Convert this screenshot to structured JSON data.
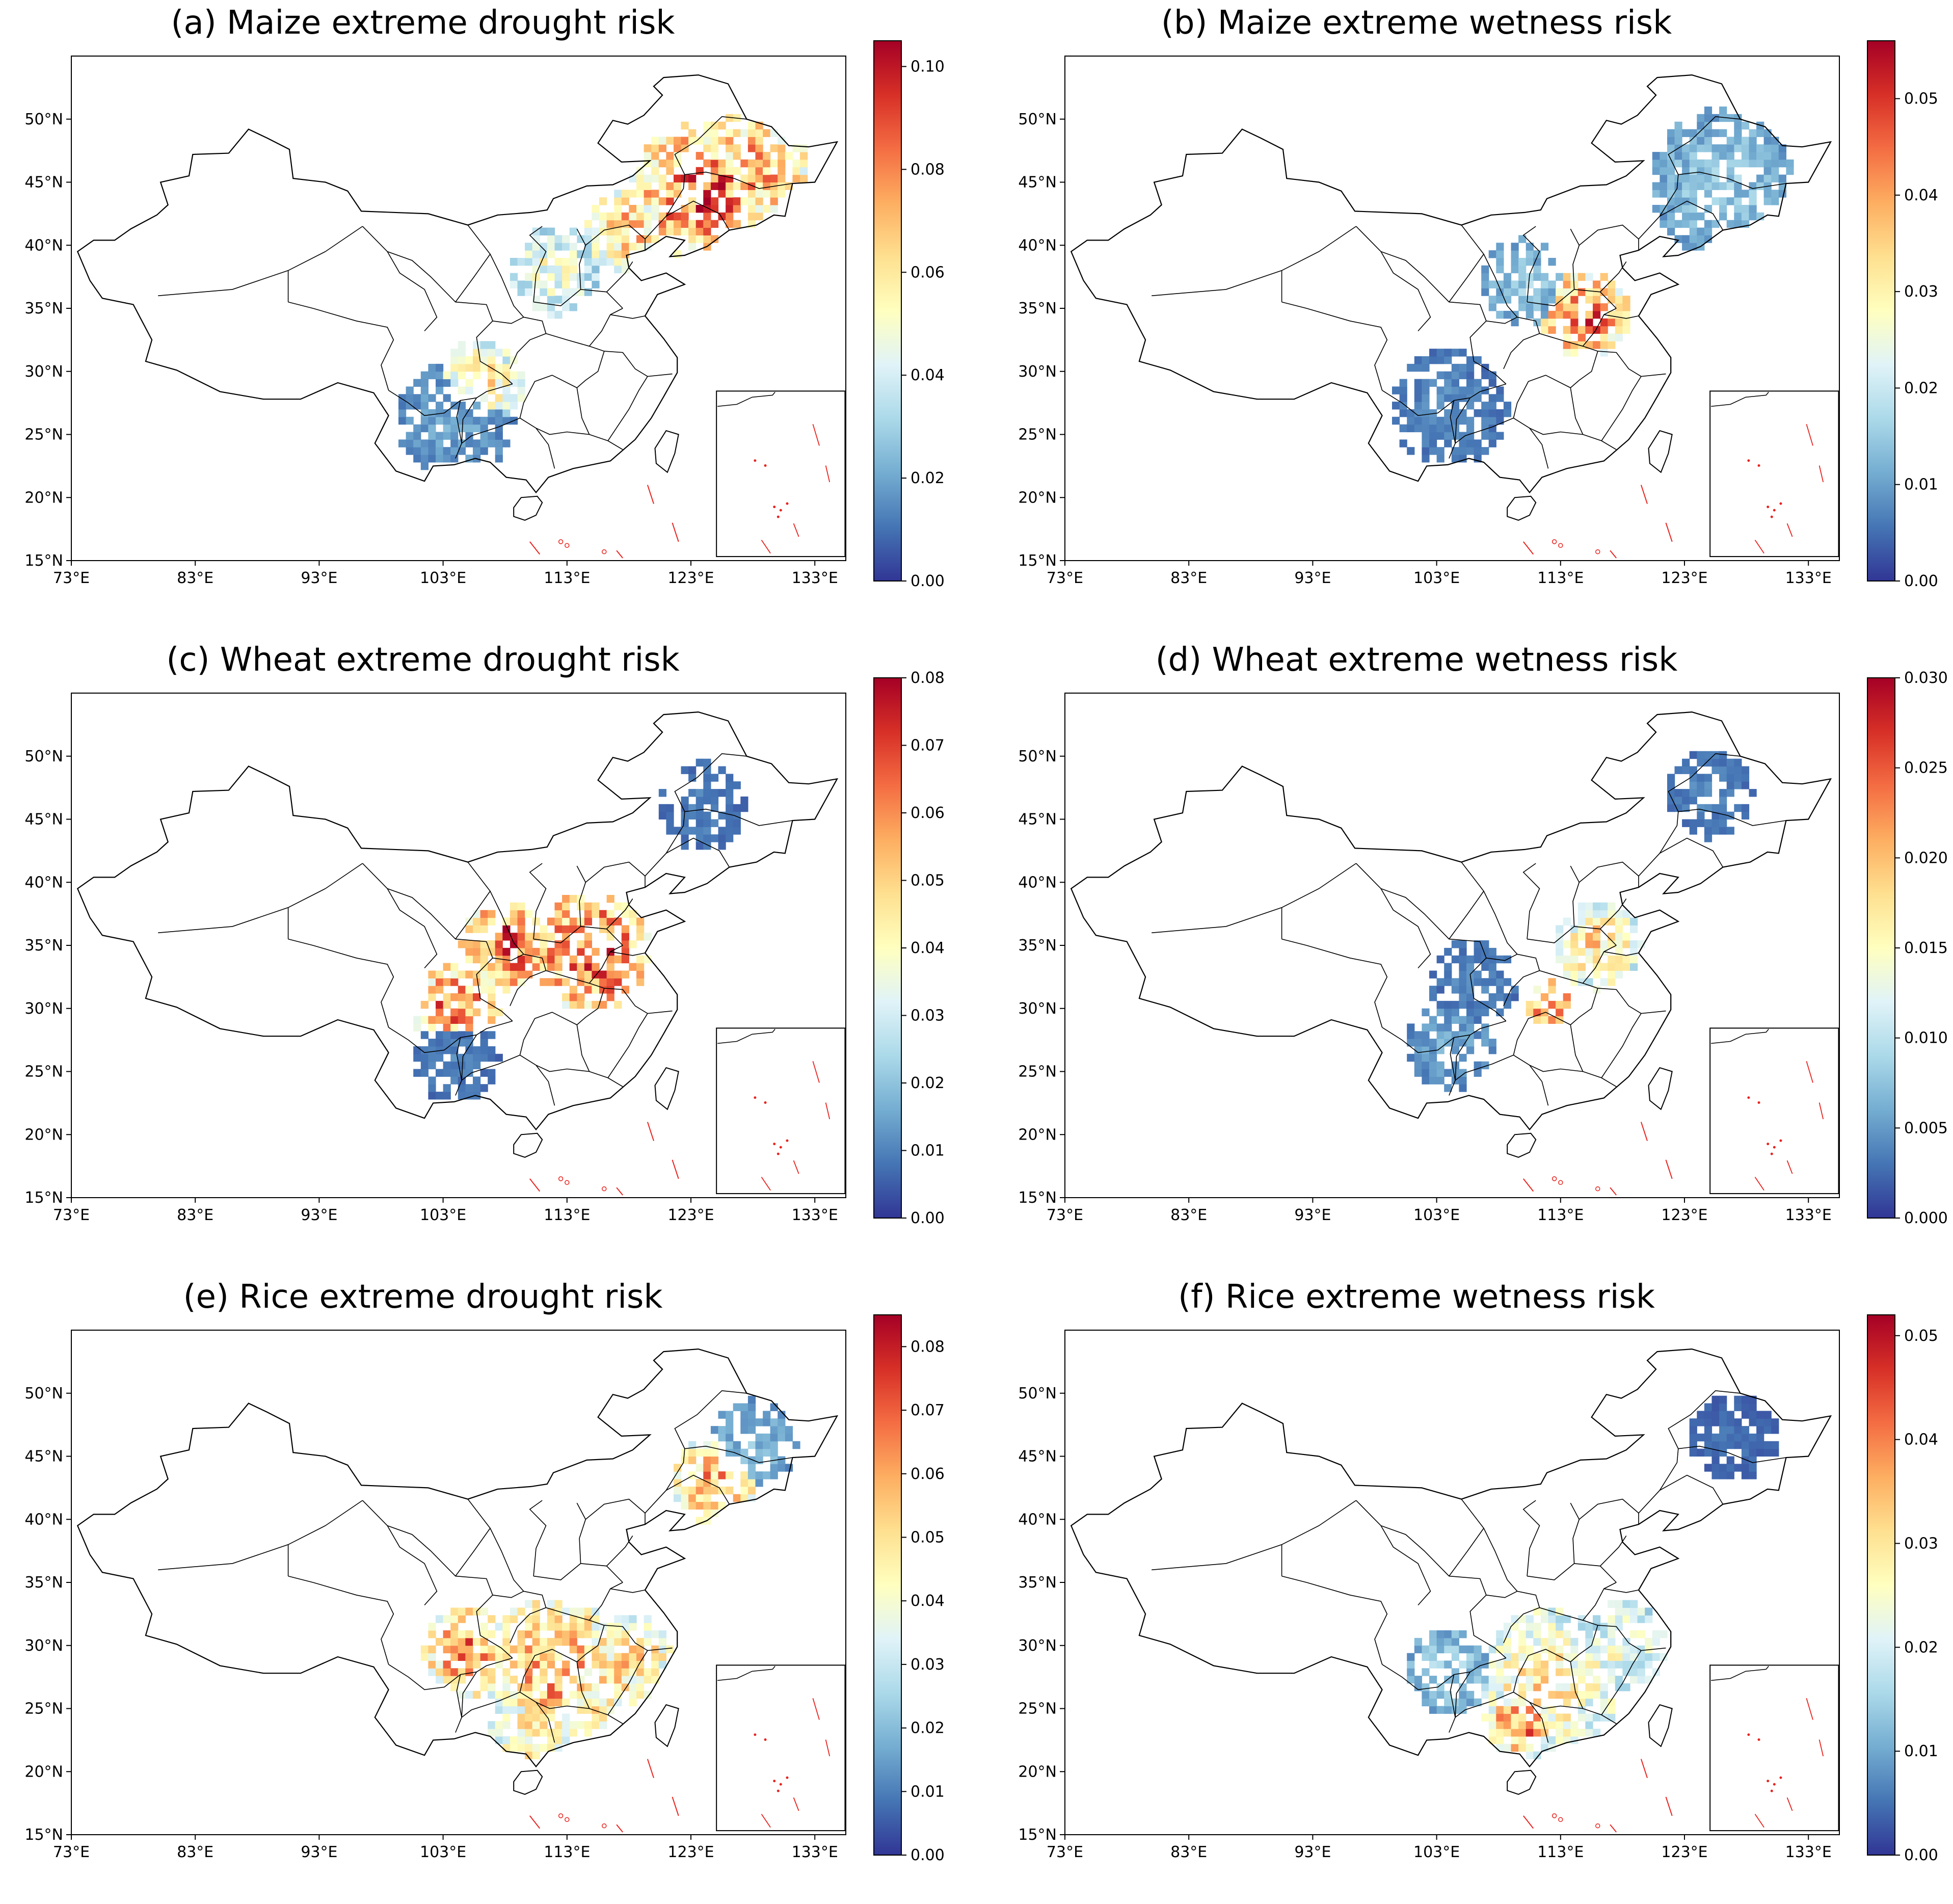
{
  "chart_data": [
    {
      "type": "heatmap",
      "panel": "a",
      "title": "(a) Maize extreme drought risk",
      "xlabel": "",
      "ylabel": "",
      "x_ticks": [
        "73°E",
        "83°E",
        "93°E",
        "103°E",
        "113°E",
        "123°E",
        "133°E"
      ],
      "y_ticks": [
        "15°N",
        "20°N",
        "25°N",
        "30°N",
        "35°N",
        "40°N",
        "45°N",
        "50°N"
      ],
      "xlim": [
        73,
        135.5
      ],
      "ylim": [
        15,
        55
      ],
      "colorbar": {
        "min": 0.0,
        "max": 0.105,
        "cmap": "RdYlBu_r",
        "ticks": [
          "0.00",
          "0.02",
          "0.04",
          "0.06",
          "0.08",
          "0.10"
        ]
      },
      "hotspots": [
        {
          "lon": 124,
          "lat": 44,
          "value": 0.085,
          "r": 5
        },
        {
          "lon": 128,
          "lat": 46,
          "value": 0.075,
          "r": 4
        },
        {
          "lon": 118,
          "lat": 41,
          "value": 0.07,
          "r": 3
        },
        {
          "lon": 112,
          "lat": 38,
          "value": 0.05,
          "r": 3
        },
        {
          "lon": 106,
          "lat": 29,
          "value": 0.06,
          "r": 3
        },
        {
          "lon": 104,
          "lat": 26,
          "value": 0.02,
          "r": 4
        }
      ]
    },
    {
      "type": "heatmap",
      "panel": "b",
      "title": "(b) Maize extreme wetness risk",
      "xlabel": "",
      "ylabel": "",
      "x_ticks": [
        "73°E",
        "83°E",
        "93°E",
        "103°E",
        "113°E",
        "123°E",
        "133°E"
      ],
      "y_ticks": [
        "15°N",
        "20°N",
        "25°N",
        "30°N",
        "35°N",
        "40°N",
        "45°N",
        "50°N"
      ],
      "xlim": [
        73,
        135.5
      ],
      "ylim": [
        15,
        55
      ],
      "colorbar": {
        "min": 0.0,
        "max": 0.056,
        "cmap": "RdYlBu_r",
        "ticks": [
          "0.00",
          "0.01",
          "0.02",
          "0.03",
          "0.04",
          "0.05"
        ]
      },
      "hotspots": [
        {
          "lon": 115,
          "lat": 34.5,
          "value": 0.045,
          "r": 3
        },
        {
          "lon": 110,
          "lat": 37,
          "value": 0.015,
          "r": 3
        },
        {
          "lon": 126,
          "lat": 45,
          "value": 0.015,
          "r": 5
        },
        {
          "lon": 104,
          "lat": 27,
          "value": 0.008,
          "r": 4
        }
      ]
    },
    {
      "type": "heatmap",
      "panel": "c",
      "title": "(c) Wheat extreme drought risk",
      "xlabel": "",
      "ylabel": "",
      "x_ticks": [
        "73°E",
        "83°E",
        "93°E",
        "103°E",
        "113°E",
        "123°E",
        "133°E"
      ],
      "y_ticks": [
        "15°N",
        "20°N",
        "25°N",
        "30°N",
        "35°N",
        "40°N",
        "45°N",
        "50°N"
      ],
      "xlim": [
        73,
        135.5
      ],
      "ylim": [
        15,
        55
      ],
      "colorbar": {
        "min": 0.0,
        "max": 0.08,
        "cmap": "RdYlBu_r",
        "ticks": [
          "0.00",
          "0.01",
          "0.02",
          "0.03",
          "0.04",
          "0.05",
          "0.06",
          "0.07",
          "0.08"
        ]
      },
      "hotspots": [
        {
          "lon": 115,
          "lat": 34.5,
          "value": 0.07,
          "r": 4
        },
        {
          "lon": 108,
          "lat": 35,
          "value": 0.068,
          "r": 3
        },
        {
          "lon": 104,
          "lat": 30,
          "value": 0.065,
          "r": 3
        },
        {
          "lon": 124,
          "lat": 46,
          "value": 0.01,
          "r": 3
        },
        {
          "lon": 104,
          "lat": 26,
          "value": 0.01,
          "r": 3
        }
      ]
    },
    {
      "type": "heatmap",
      "panel": "d",
      "title": "(d) Wheat extreme wetness risk",
      "xlabel": "",
      "ylabel": "",
      "x_ticks": [
        "73°E",
        "83°E",
        "93°E",
        "103°E",
        "113°E",
        "123°E",
        "133°E"
      ],
      "y_ticks": [
        "15°N",
        "20°N",
        "25°N",
        "30°N",
        "35°N",
        "40°N",
        "45°N",
        "50°N"
      ],
      "xlim": [
        73,
        135.5
      ],
      "ylim": [
        15,
        55
      ],
      "colorbar": {
        "min": 0.0,
        "max": 0.03,
        "cmap": "RdYlBu_r",
        "ticks": [
          "0.000",
          "0.005",
          "0.010",
          "0.015",
          "0.020",
          "0.025",
          "0.030"
        ]
      },
      "hotspots": [
        {
          "lon": 116,
          "lat": 35,
          "value": 0.018,
          "r": 3
        },
        {
          "lon": 112,
          "lat": 30.5,
          "value": 0.026,
          "r": 1.5
        },
        {
          "lon": 106,
          "lat": 32,
          "value": 0.004,
          "r": 3
        },
        {
          "lon": 104,
          "lat": 27,
          "value": 0.006,
          "r": 3
        },
        {
          "lon": 125,
          "lat": 47,
          "value": 0.004,
          "r": 3
        }
      ]
    },
    {
      "type": "heatmap",
      "panel": "e",
      "title": "(e) Rice extreme drought risk",
      "xlabel": "",
      "ylabel": "",
      "x_ticks": [
        "73°E",
        "83°E",
        "93°E",
        "103°E",
        "113°E",
        "123°E",
        "133°E"
      ],
      "y_ticks": [
        "15°N",
        "20°N",
        "25°N",
        "30°N",
        "35°N",
        "40°N",
        "45°N",
        "50°N"
      ],
      "xlim": [
        73,
        135.5
      ],
      "ylim": [
        15,
        55
      ],
      "colorbar": {
        "min": 0.0,
        "max": 0.085,
        "cmap": "RdYlBu_r",
        "ticks": [
          "0.00",
          "0.01",
          "0.02",
          "0.03",
          "0.04",
          "0.05",
          "0.06",
          "0.07",
          "0.08"
        ]
      },
      "hotspots": [
        {
          "lon": 112,
          "lat": 28,
          "value": 0.06,
          "r": 5
        },
        {
          "lon": 105,
          "lat": 29.5,
          "value": 0.065,
          "r": 3
        },
        {
          "lon": 118,
          "lat": 29,
          "value": 0.055,
          "r": 3
        },
        {
          "lon": 125,
          "lat": 43,
          "value": 0.06,
          "r": 3
        },
        {
          "lon": 128,
          "lat": 46,
          "value": 0.02,
          "r": 3
        },
        {
          "lon": 110,
          "lat": 23,
          "value": 0.05,
          "r": 3
        }
      ]
    },
    {
      "type": "heatmap",
      "panel": "f",
      "title": "(f) Rice extreme wetness risk",
      "xlabel": "",
      "ylabel": "",
      "x_ticks": [
        "73°E",
        "83°E",
        "93°E",
        "103°E",
        "113°E",
        "123°E",
        "133°E"
      ],
      "y_ticks": [
        "15°N",
        "20°N",
        "25°N",
        "30°N",
        "35°N",
        "40°N",
        "45°N",
        "50°N"
      ],
      "xlim": [
        73,
        135.5
      ],
      "ylim": [
        15,
        55
      ],
      "colorbar": {
        "min": 0.0,
        "max": 0.052,
        "cmap": "RdYlBu_r",
        "ticks": [
          "0.00",
          "0.01",
          "0.02",
          "0.03",
          "0.04",
          "0.05"
        ]
      },
      "hotspots": [
        {
          "lon": 112,
          "lat": 27,
          "value": 0.03,
          "r": 5
        },
        {
          "lon": 110,
          "lat": 24,
          "value": 0.04,
          "r": 2.5
        },
        {
          "lon": 118,
          "lat": 30,
          "value": 0.025,
          "r": 3
        },
        {
          "lon": 104,
          "lat": 28,
          "value": 0.015,
          "r": 3
        },
        {
          "lon": 127,
          "lat": 46.5,
          "value": 0.005,
          "r": 3
        }
      ]
    }
  ]
}
